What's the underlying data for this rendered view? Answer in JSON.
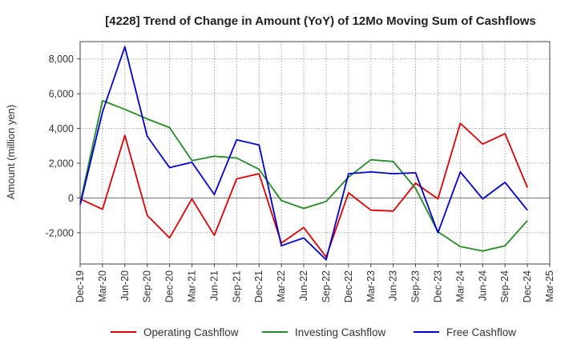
{
  "chart_data": {
    "type": "line",
    "title": "[4228]  Trend of Change in Amount (YoY) of 12Mo Moving Sum of Cashflows",
    "xlabel": "",
    "ylabel": "Amount (million yen)",
    "x": [
      "Dec-19",
      "Mar-20",
      "Jun-20",
      "Sep-20",
      "Dec-20",
      "Mar-21",
      "Jun-21",
      "Sep-21",
      "Dec-21",
      "Mar-22",
      "Jun-22",
      "Sep-22",
      "Dec-22",
      "Mar-23",
      "Jun-23",
      "Sep-23",
      "Dec-23",
      "Mar-24",
      "Jun-24",
      "Sep-24",
      "Dec-24",
      "Mar-25"
    ],
    "ylim": [
      -3800,
      9000
    ],
    "yticks": [
      -2000,
      0,
      2000,
      4000,
      6000,
      8000
    ],
    "ytick_labels": [
      "-2,000",
      "0",
      "2,000",
      "4,000",
      "6,000",
      "8,000"
    ],
    "grid": true,
    "legend_position": "bottom",
    "series": [
      {
        "name": "Operating Cashflow",
        "color": "#dd0000",
        "values": [
          -50,
          -650,
          3600,
          -1000,
          -2300,
          -50,
          -2150,
          1100,
          1400,
          -2600,
          -1700,
          -3400,
          300,
          -700,
          -750,
          850,
          -50,
          4300,
          3100,
          3700,
          600,
          null
        ]
      },
      {
        "name": "Investing Cashflow",
        "color": "#228b22",
        "values": [
          -300,
          5600,
          5100,
          4550,
          4050,
          2150,
          2400,
          2300,
          1650,
          -150,
          -600,
          -200,
          1200,
          2200,
          2100,
          550,
          -1950,
          -2800,
          -3050,
          -2750,
          -1300,
          null
        ]
      },
      {
        "name": "Free Cashflow",
        "color": "#0000cc",
        "values": [
          -400,
          4950,
          8700,
          3550,
          1750,
          2050,
          200,
          3350,
          3050,
          -2750,
          -2300,
          -3550,
          1400,
          1500,
          1400,
          1450,
          -2000,
          1500,
          -50,
          900,
          -700,
          null
        ]
      }
    ]
  }
}
